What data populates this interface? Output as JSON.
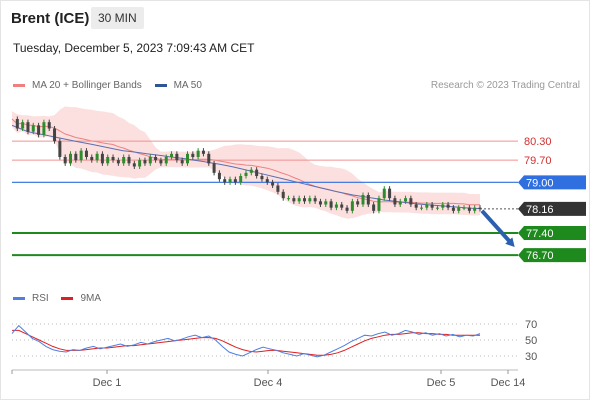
{
  "header": {
    "instrument": "Brent (ICE)",
    "timeframe": "30 MIN",
    "datetime": "Tuesday, December 5, 2023 7:09:43 AM CET"
  },
  "legend": {
    "main": [
      {
        "label": "MA 20 + Bollinger Bands",
        "color": "#f08080"
      },
      {
        "label": "MA 50",
        "color": "#2f5597"
      }
    ],
    "rsi": [
      {
        "label": "RSI",
        "color": "#4f7fe0"
      },
      {
        "label": "9MA",
        "color": "#e02020"
      }
    ]
  },
  "credit": "Research © 2023 Trading Central",
  "colors": {
    "resistance": "#d32f2f",
    "pivot": "#2f6fdf",
    "support": "#1e8a1e",
    "arrow": "#2b5fb0",
    "price_tag": "#333333"
  },
  "chart_data": {
    "type": "line",
    "x_axis": {
      "ticks": [
        "Dec 1",
        "Dec 4",
        "Dec 5",
        "Dec 14"
      ]
    },
    "y_range": [
      75.6,
      81.6
    ],
    "levels": {
      "resistance": [
        "80.30",
        "79.70"
      ],
      "pivot": "79.00",
      "last_price": "78.16",
      "support": [
        "77.40",
        "76.70"
      ]
    },
    "price": [
      81.0,
      80.7,
      80.9,
      80.6,
      80.8,
      80.5,
      80.9,
      80.7,
      80.3,
      79.8,
      79.6,
      79.9,
      79.7,
      80.0,
      79.8,
      79.7,
      79.9,
      79.6,
      79.8,
      79.7,
      79.6,
      79.8,
      79.6,
      79.5,
      79.7,
      79.6,
      79.8,
      79.7,
      79.6,
      79.8,
      79.9,
      79.7,
      79.6,
      79.9,
      79.8,
      80.0,
      79.9,
      79.6,
      79.3,
      79.1,
      79.0,
      79.1,
      79.0,
      79.2,
      79.3,
      79.4,
      79.2,
      79.1,
      79.0,
      78.9,
      78.7,
      78.5,
      78.5,
      78.4,
      78.5,
      78.4,
      78.5,
      78.4,
      78.3,
      78.4,
      78.2,
      78.3,
      78.2,
      78.1,
      78.4,
      78.3,
      78.6,
      78.3,
      78.1,
      78.5,
      78.8,
      78.5,
      78.3,
      78.4,
      78.5,
      78.3,
      78.2,
      78.2,
      78.3,
      78.2,
      78.2,
      78.3,
      78.2,
      78.1,
      78.2,
      78.2,
      78.1,
      78.2,
      78.16
    ],
    "ma50": [
      80.8,
      80.7,
      80.6,
      80.55,
      80.5,
      80.45,
      80.4,
      80.35,
      80.3,
      80.25,
      80.2,
      80.15,
      80.1,
      80.05,
      80.0,
      79.97,
      79.94,
      79.9,
      79.87,
      79.84,
      79.8,
      79.77,
      79.74,
      79.7,
      79.66,
      79.62,
      79.58,
      79.53,
      79.48,
      79.42,
      79.36,
      79.3,
      79.24,
      79.18,
      79.12,
      79.06,
      79.0,
      78.94,
      78.88,
      78.82,
      78.76,
      78.7,
      78.65,
      78.6,
      78.56,
      78.52,
      78.48,
      78.44,
      78.41,
      78.38,
      78.35,
      78.32,
      78.3,
      78.28,
      78.26,
      78.24,
      78.22,
      78.2,
      78.18,
      78.17
    ],
    "rsi": {
      "ylim": [
        15,
        85
      ],
      "ticks": [
        "70",
        "50",
        "30"
      ],
      "rsi_values": [
        58,
        68,
        60,
        52,
        48,
        42,
        38,
        36,
        35,
        38,
        37,
        40,
        42,
        39,
        41,
        43,
        45,
        42,
        44,
        47,
        45,
        48,
        50,
        52,
        49,
        51,
        54,
        56,
        53,
        55,
        50,
        42,
        35,
        32,
        30,
        34,
        38,
        41,
        39,
        37,
        34,
        32,
        30,
        33,
        31,
        29,
        31,
        35,
        39,
        43,
        48,
        52,
        56,
        55,
        58,
        60,
        56,
        58,
        62,
        60,
        57,
        59,
        56,
        58,
        55,
        57,
        54,
        56,
        55,
        58
      ],
      "ma_values": [
        62,
        62,
        58,
        54,
        50,
        46,
        42,
        39,
        37,
        37,
        37,
        38,
        39,
        40,
        40,
        41,
        42,
        43,
        43,
        44,
        45,
        46,
        47,
        48,
        49,
        50,
        51,
        52,
        53,
        53,
        52,
        49,
        45,
        41,
        38,
        36,
        35,
        36,
        37,
        37,
        36,
        35,
        34,
        33,
        32,
        31,
        31,
        32,
        34,
        37,
        41,
        45,
        49,
        52,
        54,
        56,
        57,
        57,
        58,
        59,
        59,
        58,
        58,
        57,
        57,
        56,
        56,
        56,
        56,
        56
      ]
    }
  }
}
